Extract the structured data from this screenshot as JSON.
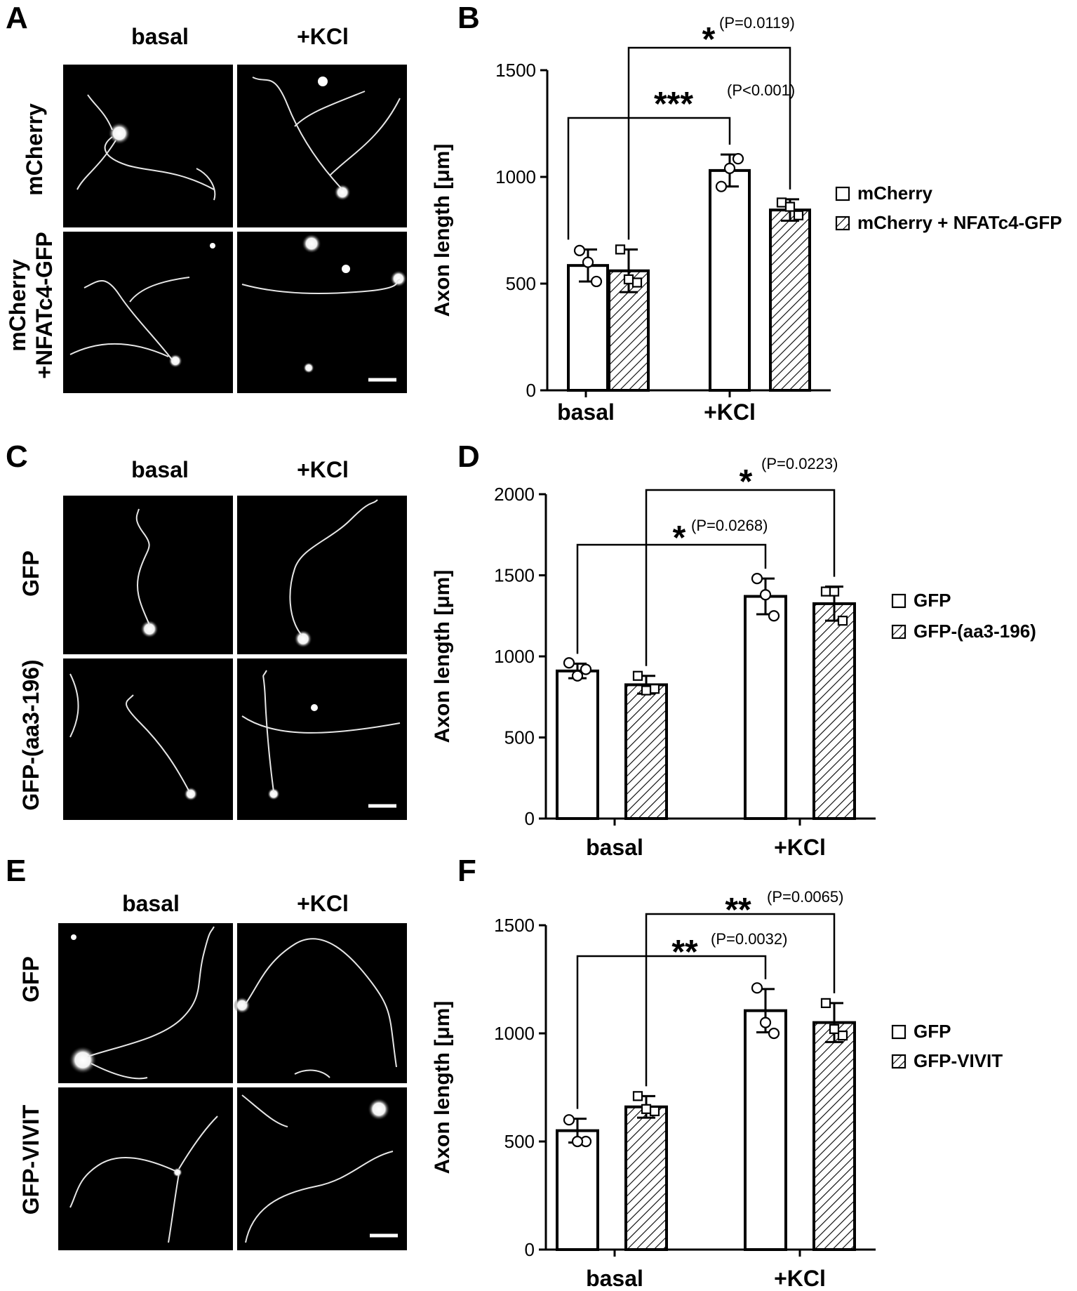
{
  "image_grids": [
    {
      "panel": "A",
      "columns": [
        "basal",
        "+KCl"
      ],
      "rows": [
        [
          "mCherry"
        ],
        [
          "mCherry",
          "+NFATc4-GFP"
        ]
      ]
    },
    {
      "panel": "C",
      "columns": [
        "basal",
        "+KCl"
      ],
      "rows": [
        [
          "GFP"
        ],
        [
          "GFP-(aa3-196)"
        ]
      ]
    },
    {
      "panel": "E",
      "columns": [
        "basal",
        "+KCl"
      ],
      "rows": [
        [
          "GFP"
        ],
        [
          "GFP-VIVIT"
        ]
      ]
    }
  ],
  "chart_data": [
    {
      "panel": "B",
      "type": "bar",
      "categories": [
        "basal",
        "+KCl"
      ],
      "ylabel": "Axon length [μm]",
      "ylim": [
        0,
        1500
      ],
      "yticks": [
        0,
        500,
        1000,
        1500
      ],
      "legend_position": "right",
      "series": [
        {
          "name": "mCherry",
          "pattern": "open",
          "marker": "circle",
          "values": [
            585,
            1030
          ],
          "sd": [
            75,
            75
          ],
          "points": [
            [
              655,
              510,
              600
            ],
            [
              955,
              1085,
              1040
            ]
          ]
        },
        {
          "name": "mCherry + NFATc4-GFP",
          "pattern": "hatched",
          "marker": "square",
          "values": [
            560,
            845
          ],
          "sd": [
            100,
            50
          ],
          "points": [
            [
              660,
              505,
              520
            ],
            [
              880,
              820,
              860
            ]
          ]
        }
      ],
      "comparisons": [
        {
          "from": "basal:mCherry",
          "to": "+KCl:mCherry",
          "stars": "***",
          "label": "(P<0.001)"
        },
        {
          "from": "basal:mCherry + NFATc4-GFP",
          "to": "+KCl:mCherry + NFATc4-GFP",
          "stars": "*",
          "label": "(P=0.0119)"
        }
      ]
    },
    {
      "panel": "D",
      "type": "bar",
      "categories": [
        "basal",
        "+KCl"
      ],
      "ylabel": "Axon length [μm]",
      "ylim": [
        0,
        2000
      ],
      "yticks": [
        0,
        500,
        1000,
        1500,
        2000
      ],
      "legend_position": "right",
      "series": [
        {
          "name": "GFP",
          "pattern": "open",
          "marker": "circle",
          "values": [
            910,
            1370
          ],
          "sd": [
            45,
            110
          ],
          "points": [
            [
              960,
              920,
              880
            ],
            [
              1480,
              1250,
              1380
            ]
          ]
        },
        {
          "name": "GFP-(aa3-196)",
          "pattern": "hatched",
          "marker": "square",
          "values": [
            825,
            1325
          ],
          "sd": [
            55,
            105
          ],
          "points": [
            [
              880,
              800,
              790
            ],
            [
              1400,
              1220,
              1400
            ]
          ]
        }
      ],
      "comparisons": [
        {
          "from": "basal:GFP",
          "to": "+KCl:GFP",
          "stars": "*",
          "label": "(P=0.0268)"
        },
        {
          "from": "basal:GFP-(aa3-196)",
          "to": "+KCl:GFP-(aa3-196)",
          "stars": "*",
          "label": "(P=0.0223)"
        }
      ]
    },
    {
      "panel": "F",
      "type": "bar",
      "categories": [
        "basal",
        "+KCl"
      ],
      "ylabel": "Axon length [μm]",
      "ylim": [
        0,
        1500
      ],
      "yticks": [
        0,
        500,
        1000,
        1500
      ],
      "legend_position": "right",
      "series": [
        {
          "name": "GFP",
          "pattern": "open",
          "marker": "circle",
          "values": [
            550,
            1105
          ],
          "sd": [
            55,
            100
          ],
          "points": [
            [
              600,
              500,
              500
            ],
            [
              1210,
              1000,
              1050
            ]
          ]
        },
        {
          "name": "GFP-VIVIT",
          "pattern": "hatched",
          "marker": "square",
          "values": [
            660,
            1050
          ],
          "sd": [
            50,
            90
          ],
          "points": [
            [
              710,
              640,
              650
            ],
            [
              1140,
              990,
              1020
            ]
          ]
        }
      ],
      "comparisons": [
        {
          "from": "basal:GFP",
          "to": "+KCl:GFP",
          "stars": "**",
          "label": "(P=0.0032)"
        },
        {
          "from": "basal:GFP-VIVIT",
          "to": "+KCl:GFP-VIVIT",
          "stars": "**",
          "label": "(P=0.0065)"
        }
      ]
    }
  ]
}
